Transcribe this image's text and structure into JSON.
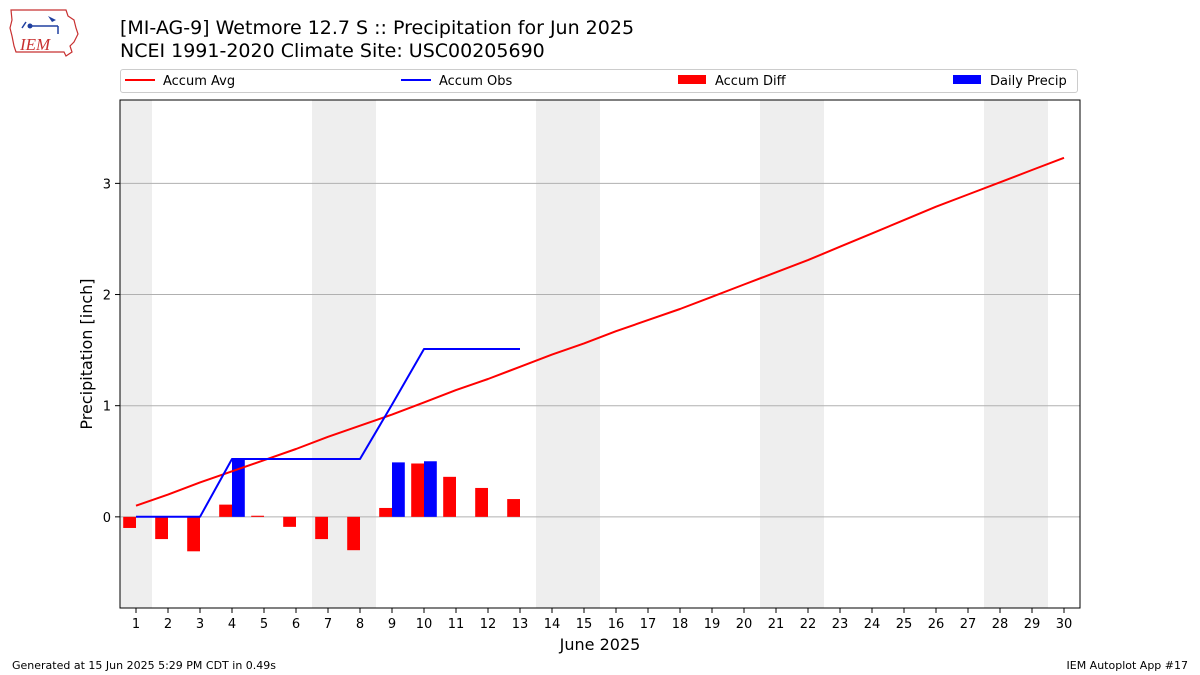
{
  "title_line1": "[MI-AG-9] Wetmore 12.7 S :: Precipitation for Jun 2025",
  "title_line2": "NCEI 1991-2020 Climate Site: USC00205690",
  "logo_text": "IEM",
  "footer_left": "Generated at 15 Jun 2025 5:29 PM CDT in 0.49s",
  "footer_right": "IEM Autoplot App #17",
  "colors": {
    "accum_avg": "#ff0000",
    "accum_obs": "#0000ff",
    "accum_diff": "#ff0000",
    "daily_precip": "#0000ff",
    "weekend_shade": "#eeeeee",
    "grid": "#b0b0b0"
  },
  "legend": [
    {
      "label": "Accum Avg",
      "kind": "line",
      "color_key": "accum_avg"
    },
    {
      "label": "Accum Obs",
      "kind": "line",
      "color_key": "accum_obs"
    },
    {
      "label": "Accum Diff",
      "kind": "box",
      "color_key": "accum_diff"
    },
    {
      "label": "Daily Precip",
      "kind": "box",
      "color_key": "daily_precip"
    }
  ],
  "chart_data": {
    "type": "bar",
    "xlabel": "June 2025",
    "ylabel": "Precipitation [inch]",
    "xlim": [
      0.5,
      30.5
    ],
    "ylim": [
      -0.82,
      3.75
    ],
    "xticks": [
      1,
      2,
      3,
      4,
      5,
      6,
      7,
      8,
      9,
      10,
      11,
      12,
      13,
      14,
      15,
      16,
      17,
      18,
      19,
      20,
      21,
      22,
      23,
      24,
      25,
      26,
      27,
      28,
      29,
      30
    ],
    "yticks": [
      0,
      1,
      2,
      3
    ],
    "grid": "horizontal",
    "legend_position": "top",
    "weekend_days": [
      1,
      7,
      8,
      14,
      15,
      21,
      22,
      28,
      29
    ],
    "series": [
      {
        "name": "Accum Avg",
        "type": "line",
        "x": [
          1,
          2,
          3,
          4,
          5,
          6,
          7,
          8,
          9,
          10,
          11,
          12,
          13,
          14,
          15,
          16,
          17,
          18,
          19,
          20,
          21,
          22,
          23,
          24,
          25,
          26,
          27,
          28,
          29,
          30
        ],
        "values": [
          0.1,
          0.2,
          0.31,
          0.41,
          0.51,
          0.61,
          0.72,
          0.82,
          0.92,
          1.03,
          1.14,
          1.24,
          1.35,
          1.46,
          1.56,
          1.67,
          1.77,
          1.87,
          1.98,
          2.09,
          2.2,
          2.31,
          2.43,
          2.55,
          2.67,
          2.79,
          2.9,
          3.01,
          3.12,
          3.23
        ]
      },
      {
        "name": "Accum Obs",
        "type": "line",
        "x": [
          1,
          2,
          3,
          4,
          5,
          6,
          7,
          8,
          9,
          10,
          11,
          12,
          13
        ],
        "values": [
          0.0,
          0.0,
          0.0,
          0.52,
          0.52,
          0.52,
          0.52,
          0.52,
          1.01,
          1.51,
          1.51,
          1.51,
          1.51
        ]
      },
      {
        "name": "Accum Diff",
        "type": "bar",
        "x": [
          1,
          2,
          3,
          4,
          5,
          6,
          7,
          8,
          9,
          10,
          11,
          12,
          13
        ],
        "values": [
          -0.1,
          -0.2,
          -0.31,
          0.11,
          0.01,
          -0.09,
          -0.2,
          -0.3,
          0.08,
          0.48,
          0.36,
          0.26,
          0.16
        ]
      },
      {
        "name": "Daily Precip",
        "type": "bar",
        "x": [
          1,
          2,
          3,
          4,
          5,
          6,
          7,
          8,
          9,
          10,
          11,
          12,
          13
        ],
        "values": [
          0.0,
          0.0,
          0.0,
          0.52,
          0.0,
          0.0,
          0.0,
          0.0,
          0.49,
          0.5,
          0.0,
          0.0,
          0.0
        ]
      }
    ]
  }
}
